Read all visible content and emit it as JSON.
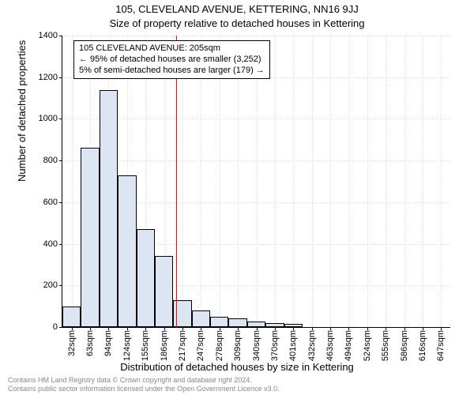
{
  "title": "105, CLEVELAND AVENUE, KETTERING, NN16 9JJ",
  "subtitle": "Size of property relative to detached houses in Kettering",
  "yaxis": {
    "title": "Number of detached properties",
    "min": 0,
    "max": 1400,
    "tick_step": 200,
    "ticks": [
      0,
      200,
      400,
      600,
      800,
      1000,
      1200,
      1400
    ],
    "label_fontsize": 11,
    "title_fontsize": 13
  },
  "xaxis": {
    "title": "Distribution of detached houses by size in Kettering",
    "categories": [
      "32sqm",
      "63sqm",
      "94sqm",
      "124sqm",
      "155sqm",
      "186sqm",
      "217sqm",
      "247sqm",
      "278sqm",
      "309sqm",
      "340sqm",
      "370sqm",
      "401sqm",
      "432sqm",
      "463sqm",
      "494sqm",
      "524sqm",
      "555sqm",
      "586sqm",
      "616sqm",
      "647sqm"
    ],
    "label_fontsize": 11,
    "title_fontsize": 13
  },
  "chart": {
    "type": "histogram",
    "bar_fill": "#dce6f2",
    "bar_border": "#000000",
    "background": "#ffffff",
    "grid_color": "#bfbfbf",
    "values": [
      100,
      860,
      1140,
      730,
      470,
      340,
      130,
      80,
      50,
      40,
      25,
      20,
      15,
      0,
      0,
      0,
      0,
      0,
      0,
      0,
      0
    ],
    "refline": {
      "x_category_index": 5.65,
      "color": "#ff0000",
      "label_sqm": 205
    },
    "annotation": {
      "lines": [
        "105 CLEVELAND AVENUE: 205sqm",
        "← 95% of detached houses are smaller (3,252)",
        "5% of semi-detached houses are larger (179) →"
      ],
      "border_color": "#000000",
      "bg": "#ffffff",
      "fontsize": 11
    }
  },
  "footer": {
    "line1": "Contains HM Land Registry data © Crown copyright and database right 2024.",
    "line2": "Contains public sector information licensed under the Open Government Licence v3.0.",
    "color": "#888888",
    "fontsize": 9
  }
}
